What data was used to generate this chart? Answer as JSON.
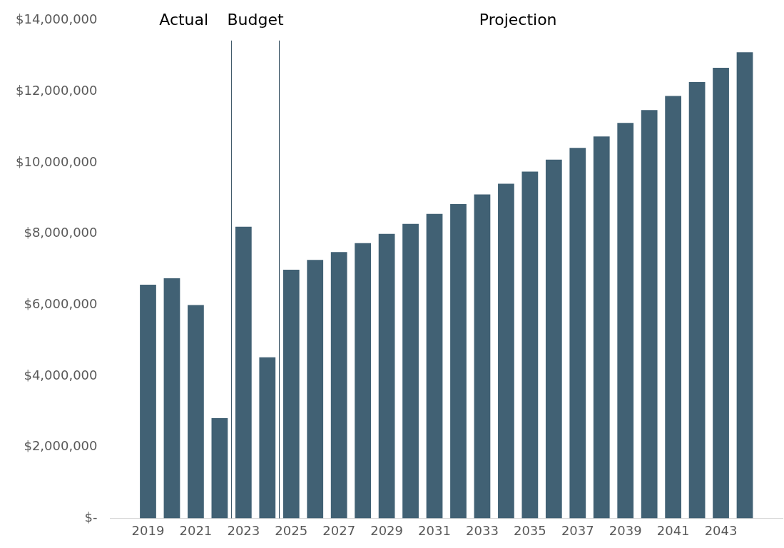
{
  "chart_data": {
    "type": "bar",
    "x": [
      2019,
      2020,
      2021,
      2022,
      2023,
      2024,
      2025,
      2026,
      2027,
      2028,
      2029,
      2030,
      2031,
      2032,
      2033,
      2034,
      2035,
      2036,
      2037,
      2038,
      2039,
      2040,
      2041,
      2042,
      2043,
      2044
    ],
    "values": [
      6570000,
      6750000,
      6000000,
      2820000,
      8200000,
      4530000,
      6990000,
      7270000,
      7490000,
      7740000,
      8000000,
      8280000,
      8560000,
      8840000,
      9110000,
      9410000,
      9750000,
      10090000,
      10420000,
      10740000,
      11120000,
      11480000,
      11880000,
      12270000,
      12670000,
      13110000
    ],
    "color": "#416174",
    "xlim": [
      2018.5,
      2044.5
    ],
    "xticks": [
      2019,
      2021,
      2023,
      2025,
      2027,
      2029,
      2031,
      2033,
      2035,
      2037,
      2039,
      2041,
      2043
    ],
    "ylim": [
      0,
      14000000
    ],
    "yticks": [
      {
        "value": 0,
        "label": "$-"
      },
      {
        "value": 2000000,
        "label": "$2,000,000"
      },
      {
        "value": 4000000,
        "label": "$4,000,000"
      },
      {
        "value": 6000000,
        "label": "$6,000,000"
      },
      {
        "value": 8000000,
        "label": "$8,000,000"
      },
      {
        "value": 10000000,
        "label": "$10,000,000"
      },
      {
        "value": 12000000,
        "label": "$12,000,000"
      },
      {
        "value": 14000000,
        "label": "$14,000,000"
      }
    ],
    "ref_lines": [
      {
        "axis": "x",
        "value": 2022.5,
        "color": "#2f4a5c"
      },
      {
        "axis": "x",
        "value": 2024.5,
        "color": "#2f4a5c"
      }
    ],
    "annotations": [
      "Actual",
      "Budget",
      "Projection"
    ],
    "grid": false,
    "legend": false
  }
}
